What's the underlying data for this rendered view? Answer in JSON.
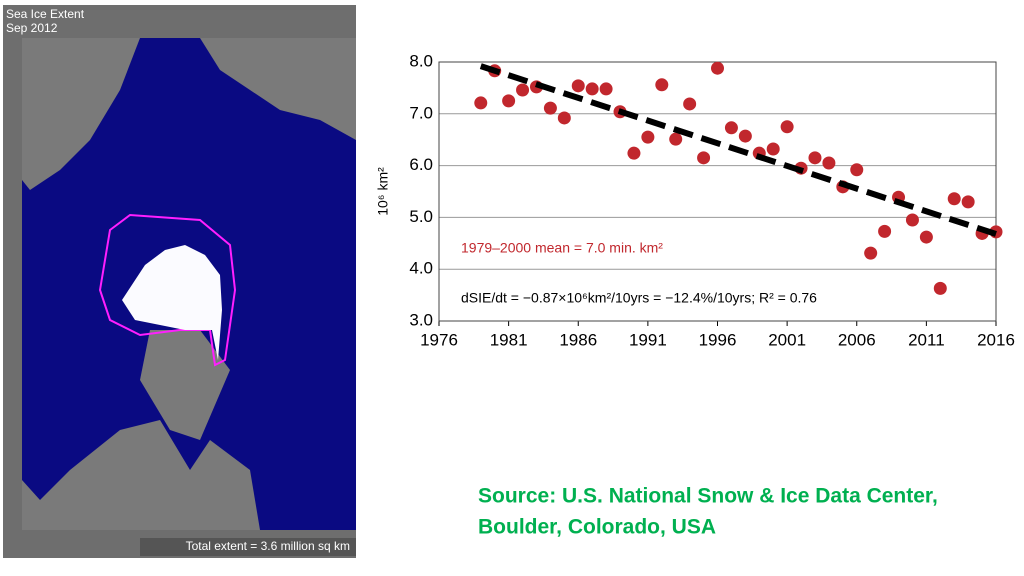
{
  "map": {
    "title": "Sea Ice Extent",
    "subtitle": "Sep 2012",
    "footer": "Total extent =  3.6 million sq km"
  },
  "chart_data": {
    "type": "scatter",
    "x": [
      1979,
      1980,
      1981,
      1982,
      1983,
      1984,
      1985,
      1986,
      1987,
      1988,
      1989,
      1990,
      1991,
      1992,
      1993,
      1994,
      1995,
      1996,
      1997,
      1998,
      1999,
      2000,
      2001,
      2002,
      2003,
      2004,
      2005,
      2006,
      2007,
      2008,
      2009,
      2010,
      2011,
      2012,
      2013,
      2014,
      2015,
      2016
    ],
    "values": [
      7.21,
      7.83,
      7.25,
      7.46,
      7.52,
      7.11,
      6.92,
      7.54,
      7.48,
      7.48,
      7.04,
      6.24,
      6.55,
      7.56,
      6.51,
      7.19,
      6.15,
      7.88,
      6.73,
      6.57,
      6.24,
      6.32,
      6.75,
      5.95,
      6.15,
      6.05,
      5.59,
      5.92,
      4.31,
      4.73,
      5.39,
      4.95,
      4.62,
      3.63,
      5.36,
      5.3,
      4.69,
      4.72
    ],
    "color": "#c1272d",
    "trend": {
      "x": [
        1979,
        2016
      ],
      "values": [
        7.92,
        4.68
      ],
      "color": "#000000"
    },
    "y_label": "10⁶ km²",
    "annotations": [
      "1979–2000 mean = 7.0 min. km²",
      "dSIE/dt = −0.87×10⁶km²/10yrs = −12.4%/10yrs; R² = 0.76"
    ],
    "xlim": [
      1976,
      2016
    ],
    "ylim": [
      3,
      8
    ],
    "xticks": [
      1976,
      1981,
      1986,
      1991,
      1996,
      2001,
      2006,
      2011,
      2016
    ],
    "yticks": [
      {
        "value": 3,
        "label": "3.0"
      },
      {
        "value": 4,
        "label": "4.0"
      },
      {
        "value": 5,
        "label": "5.0"
      },
      {
        "value": 6,
        "label": "6.0"
      },
      {
        "value": 7,
        "label": "7.0"
      },
      {
        "value": 8,
        "label": "8.0"
      }
    ],
    "grid": true
  },
  "source": {
    "lines": [
      "Source: U.S. National Snow & Ice Data Center,",
      "Boulder, Colorado, USA"
    ]
  }
}
